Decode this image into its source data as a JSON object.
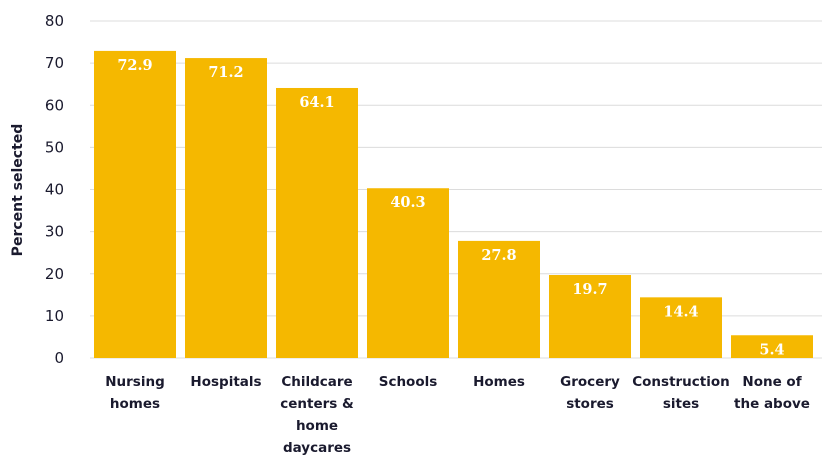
{
  "chart_data": {
    "type": "bar",
    "title": "",
    "xlabel": "",
    "ylabel": "Percent selected",
    "ylim": [
      0,
      80
    ],
    "yticks": [
      0,
      10,
      20,
      30,
      40,
      50,
      60,
      70,
      80
    ],
    "grid": true,
    "bar_color": "#f5b800",
    "categories": [
      [
        "Nursing",
        "homes"
      ],
      [
        "Hospitals"
      ],
      [
        "Childcare",
        "centers &",
        "home",
        "daycares"
      ],
      [
        "Schools"
      ],
      [
        "Homes"
      ],
      [
        "Grocery",
        "stores"
      ],
      [
        "Construction",
        "sites"
      ],
      [
        "None of",
        "the above"
      ]
    ],
    "values": [
      72.9,
      71.2,
      64.1,
      40.3,
      27.8,
      19.7,
      14.4,
      5.4
    ],
    "data_labels": [
      "72.9",
      "71.2",
      "64.1",
      "40.3",
      "27.8",
      "19.7",
      "14.4",
      "5.4"
    ]
  }
}
